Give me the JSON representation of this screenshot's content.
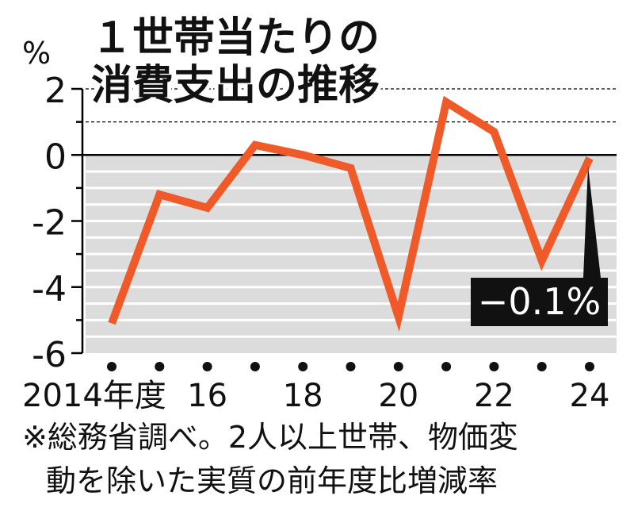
{
  "chart_data": {
    "type": "line",
    "title_lines": [
      "１世帯当たりの",
      "消費支出の推移"
    ],
    "y_unit": "%",
    "categories": [
      "2014年度",
      "2015",
      "2016",
      "2017",
      "2018",
      "2019",
      "2020",
      "2021",
      "2022",
      "2023",
      "2024"
    ],
    "x_tick_labels": [
      "2014年度",
      "",
      "16",
      "",
      "18",
      "",
      "20",
      "",
      "22",
      "",
      "24"
    ],
    "y_ticks": [
      "2",
      "0",
      "-2",
      "-4",
      "-6"
    ],
    "ylim": [
      -6,
      2
    ],
    "series": [
      {
        "values": [
          -5.1,
          -1.2,
          -1.6,
          0.3,
          0.0,
          -0.4,
          -4.9,
          1.6,
          0.7,
          -3.2,
          -0.1
        ],
        "color": "#f05a28"
      }
    ],
    "callout": {
      "label": "−0.1%",
      "target_index": 10
    },
    "shading": "below zero shaded gray",
    "colors": {
      "line": "#f05a28",
      "shade": "#dcdcdc",
      "axis": "#000000"
    }
  },
  "footnote": {
    "line1": "※総務省調べ。2人以上世帯、物価変",
    "line2": "動を除いた実質の前年度比増減率"
  }
}
